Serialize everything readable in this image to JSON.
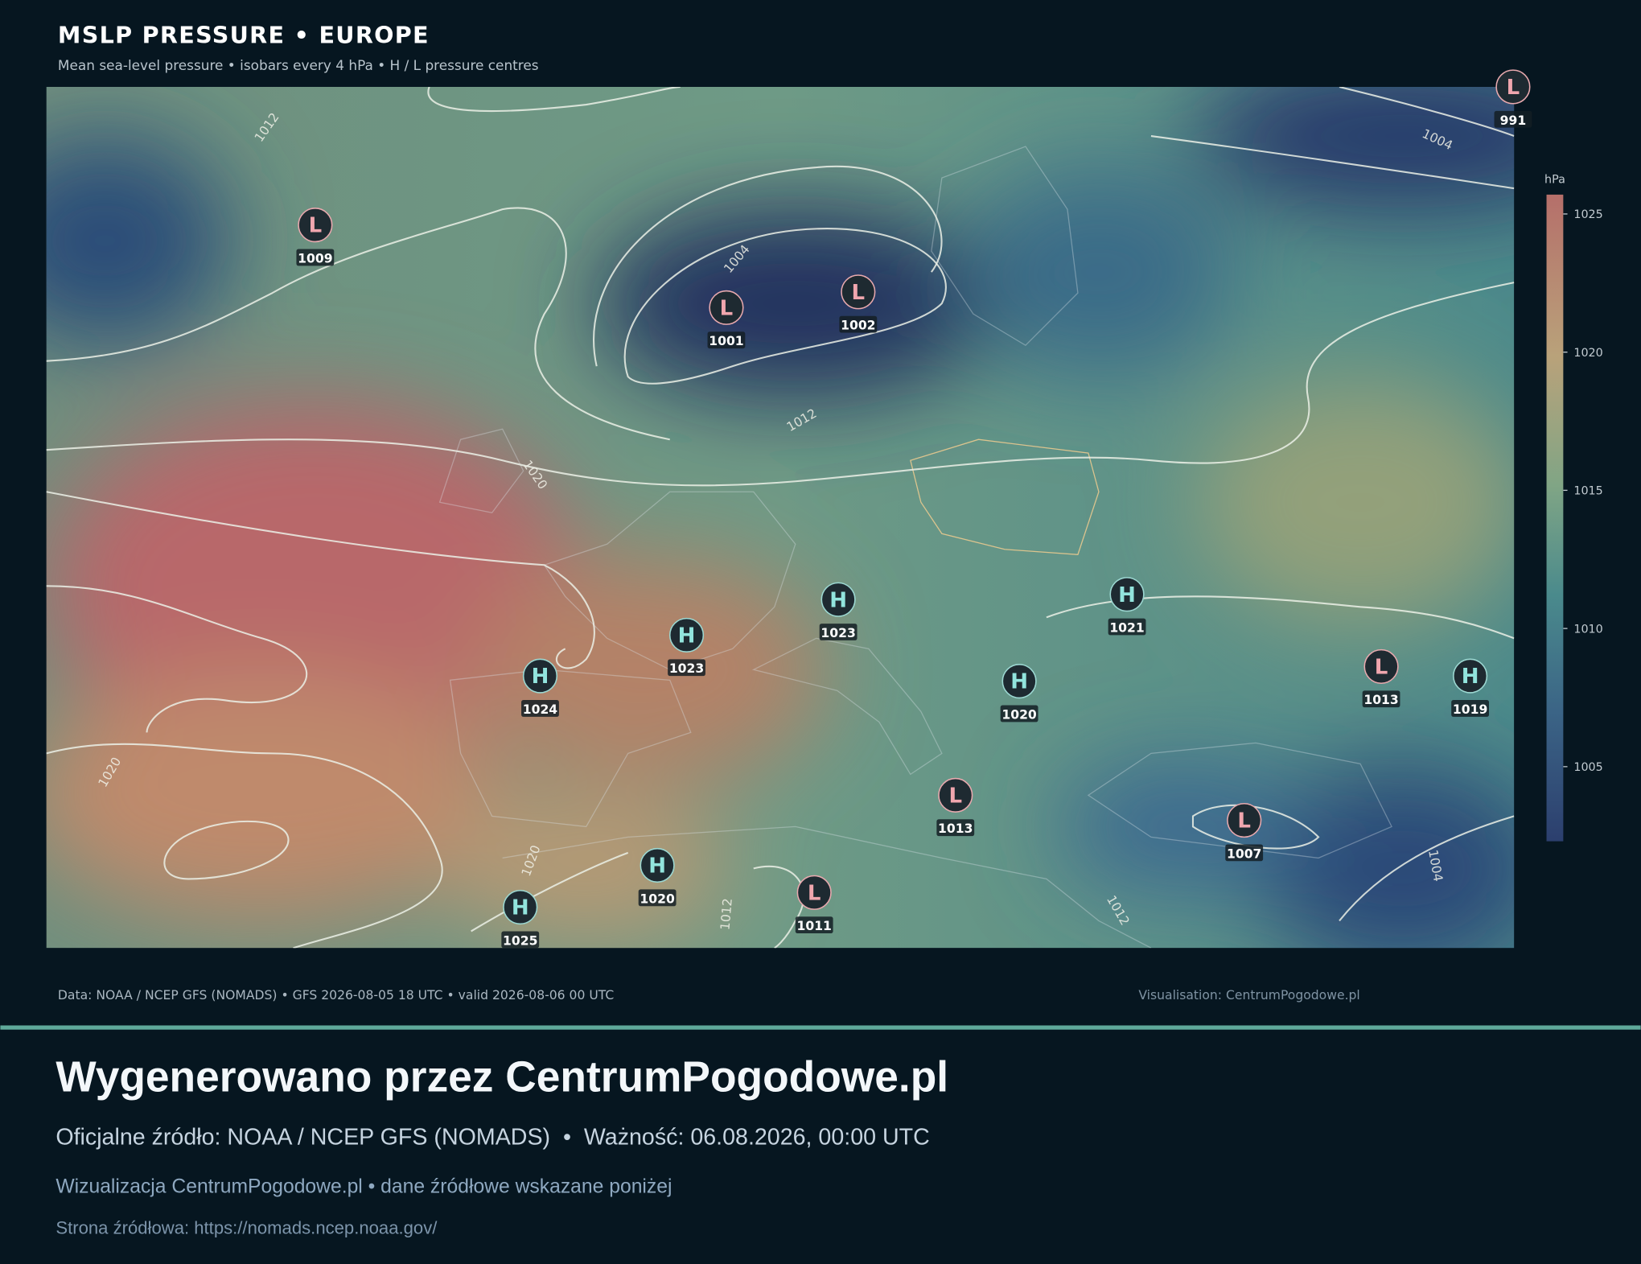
{
  "header": {
    "title": "MSLP PRESSURE • EUROPE",
    "subtitle": "Mean sea-level pressure • isobars every 4 hPa • H / L pressure centres"
  },
  "map": {
    "centres": [
      {
        "kind": "L",
        "value": 991
      },
      {
        "kind": "L",
        "value": 1009
      },
      {
        "kind": "L",
        "value": 1001
      },
      {
        "kind": "L",
        "value": 1002
      },
      {
        "kind": "H",
        "value": 1023
      },
      {
        "kind": "H",
        "value": 1023
      },
      {
        "kind": "H",
        "value": 1024
      },
      {
        "kind": "H",
        "value": 1021
      },
      {
        "kind": "H",
        "value": 1020
      },
      {
        "kind": "L",
        "value": 1013
      },
      {
        "kind": "H",
        "value": 1019
      },
      {
        "kind": "L",
        "value": 1013
      },
      {
        "kind": "L",
        "value": 1007
      },
      {
        "kind": "H",
        "value": 1020
      },
      {
        "kind": "H",
        "value": 1025
      },
      {
        "kind": "L",
        "value": 1011
      }
    ],
    "isobar_labels": [
      1012,
      1004,
      1004,
      1012,
      1020,
      1020,
      1020,
      1012,
      1012,
      1004
    ]
  },
  "colorbar": {
    "label": "hPa",
    "range": [
      1002.3,
      1025.7
    ],
    "ticks": [
      1005,
      1010,
      1015,
      1020,
      1025
    ]
  },
  "footer": {
    "source": "Data: NOAA / NCEP GFS (NOMADS) • GFS 2026-08-05 18 UTC • valid 2026-08-06 00 UTC",
    "credit": "Visualisation: CentrumPogodowe.pl"
  },
  "banner": {
    "title": "Wygenerowano przez CentrumPogodowe.pl",
    "source_line": "Oficjalne źródło: NOAA / NCEP GFS (NOMADS)  •  Ważność: 06.08.2026, 00:00 UTC",
    "note": "Wizualizacja CentrumPogodowe.pl • dane źródłowe wskazane poniżej",
    "url": "Strona źródłowa: https://nomads.ncep.noaa.gov/"
  }
}
